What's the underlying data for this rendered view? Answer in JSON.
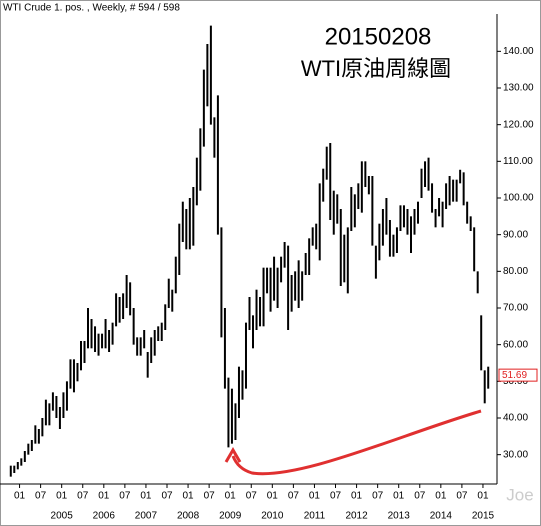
{
  "chart_data": {
    "type": "range-bar",
    "title": "WTI Crude 1. pos. , Weekly, # 594 / 598",
    "annotations": [
      "20150208",
      "WTI原油周線圖"
    ],
    "watermark": "Joe",
    "color": "#000000",
    "last_price": 51.69,
    "last_price_color": "#e02020",
    "x": [
      "2003-10",
      "2003-11",
      "2003-12",
      "2004-01",
      "2004-02",
      "2004-03",
      "2004-04",
      "2004-05",
      "2004-06",
      "2004-07",
      "2004-08",
      "2004-09",
      "2004-10",
      "2004-11",
      "2004-12",
      "2005-01",
      "2005-02",
      "2005-03",
      "2005-04",
      "2005-05",
      "2005-06",
      "2005-07",
      "2005-08",
      "2005-09",
      "2005-10",
      "2005-11",
      "2005-12",
      "2006-01",
      "2006-02",
      "2006-03",
      "2006-04",
      "2006-05",
      "2006-06",
      "2006-07",
      "2006-08",
      "2006-09",
      "2006-10",
      "2006-11",
      "2006-12",
      "2007-01",
      "2007-02",
      "2007-03",
      "2007-04",
      "2007-05",
      "2007-06",
      "2007-07",
      "2007-08",
      "2007-09",
      "2007-10",
      "2007-11",
      "2007-12",
      "2008-01",
      "2008-02",
      "2008-03",
      "2008-04",
      "2008-05",
      "2008-06",
      "2008-07",
      "2008-08",
      "2008-09",
      "2008-10",
      "2008-11",
      "2008-12",
      "2009-01",
      "2009-02",
      "2009-03",
      "2009-04",
      "2009-05",
      "2009-06",
      "2009-07",
      "2009-08",
      "2009-09",
      "2009-10",
      "2009-11",
      "2009-12",
      "2010-01",
      "2010-02",
      "2010-03",
      "2010-04",
      "2010-05",
      "2010-06",
      "2010-07",
      "2010-08",
      "2010-09",
      "2010-10",
      "2010-11",
      "2010-12",
      "2011-01",
      "2011-02",
      "2011-03",
      "2011-04",
      "2011-05",
      "2011-06",
      "2011-07",
      "2011-08",
      "2011-09",
      "2011-10",
      "2011-11",
      "2011-12",
      "2012-01",
      "2012-02",
      "2012-03",
      "2012-04",
      "2012-05",
      "2012-06",
      "2012-07",
      "2012-08",
      "2012-09",
      "2012-10",
      "2012-11",
      "2012-12",
      "2013-01",
      "2013-02",
      "2013-03",
      "2013-04",
      "2013-05",
      "2013-06",
      "2013-07",
      "2013-08",
      "2013-09",
      "2013-10",
      "2013-11",
      "2013-12",
      "2014-01",
      "2014-02",
      "2014-03",
      "2014-04",
      "2014-05",
      "2014-06",
      "2014-07",
      "2014-08",
      "2014-09",
      "2014-10",
      "2014-11",
      "2014-12",
      "2015-01",
      "2015-02"
    ],
    "low": [
      24,
      25,
      26,
      27,
      28,
      30,
      31,
      33,
      33,
      35,
      38,
      38,
      42,
      40,
      37,
      40,
      42,
      48,
      47,
      50,
      53,
      55,
      59,
      59,
      58,
      57,
      59,
      59,
      58,
      60,
      65,
      66,
      67,
      70,
      68,
      60,
      57,
      57,
      59,
      51,
      55,
      57,
      61,
      61,
      64,
      70,
      69,
      74,
      79,
      88,
      86,
      86,
      87,
      98,
      102,
      114,
      125,
      120,
      111,
      90,
      62,
      48,
      32,
      33,
      34,
      40,
      45,
      48,
      64,
      59,
      64,
      65,
      65,
      74,
      69,
      72,
      70,
      77,
      81,
      64,
      69,
      72,
      70,
      72,
      79,
      79,
      87,
      86,
      83,
      99,
      105,
      94,
      90,
      93,
      76,
      77,
      74,
      91,
      92,
      97,
      96,
      103,
      101,
      87,
      78,
      83,
      87,
      90,
      84,
      84,
      85,
      91,
      92,
      90,
      85,
      90,
      93,
      100,
      103,
      102,
      96,
      92,
      95,
      92,
      97,
      98,
      99,
      99,
      104,
      98,
      93,
      91,
      80,
      74,
      53,
      44,
      48
    ],
    "high": [
      27,
      27,
      28,
      29,
      31,
      33,
      34,
      38,
      37,
      40,
      45,
      44,
      47,
      46,
      43,
      47,
      50,
      56,
      56,
      55,
      61,
      61,
      70,
      67,
      65,
      63,
      63,
      67,
      64,
      66,
      74,
      73,
      74,
      79,
      77,
      70,
      62,
      62,
      64,
      58,
      62,
      64,
      65,
      66,
      71,
      78,
      75,
      84,
      93,
      99,
      97,
      100,
      103,
      111,
      119,
      135,
      142,
      147,
      122,
      128,
      92,
      70,
      51,
      48,
      44,
      54,
      53,
      66,
      73,
      68,
      75,
      73,
      81,
      81,
      81,
      84,
      81,
      84,
      88,
      87,
      79,
      80,
      83,
      80,
      85,
      89,
      92,
      93,
      104,
      108,
      114,
      115,
      102,
      101,
      97,
      90,
      92,
      103,
      101,
      104,
      110,
      110,
      106,
      106,
      87,
      93,
      97,
      100,
      94,
      90,
      92,
      98,
      98,
      97,
      95,
      97,
      99,
      108,
      110,
      111,
      104,
      97,
      100,
      99,
      104,
      106,
      105,
      105,
      107.7,
      107,
      99,
      95,
      92,
      80,
      68,
      53,
      54
    ],
    "xlim": [
      "2003-08",
      "2015-05"
    ],
    "ylim": [
      22,
      154
    ],
    "yticks": [
      {
        "value": 30,
        "label": "30.00"
      },
      {
        "value": 40,
        "label": "40.00"
      },
      {
        "value": 50,
        "label": "50.00"
      },
      {
        "value": 60,
        "label": "60.00"
      },
      {
        "value": 70,
        "label": "70.00"
      },
      {
        "value": 80,
        "label": "80.00"
      },
      {
        "value": 90,
        "label": "90.00"
      },
      {
        "value": 100,
        "label": "100.00"
      },
      {
        "value": 110,
        "label": "110.00"
      },
      {
        "value": 120,
        "label": "120.00"
      },
      {
        "value": 130,
        "label": "130.00"
      },
      {
        "value": 140,
        "label": "140.00"
      }
    ],
    "xticks": [
      {
        "value": "2004-01",
        "label": "01"
      },
      {
        "value": "2004-07",
        "label": "07"
      },
      {
        "value": "2005-01",
        "label": "01"
      },
      {
        "value": "2005-07",
        "label": "07"
      },
      {
        "value": "2006-01",
        "label": "01"
      },
      {
        "value": "2006-07",
        "label": "07"
      },
      {
        "value": "2007-01",
        "label": "01"
      },
      {
        "value": "2007-07",
        "label": "07"
      },
      {
        "value": "2008-01",
        "label": "01"
      },
      {
        "value": "2008-07",
        "label": "07"
      },
      {
        "value": "2009-01",
        "label": "01"
      },
      {
        "value": "2009-07",
        "label": "07"
      },
      {
        "value": "2010-01",
        "label": "01"
      },
      {
        "value": "2010-07",
        "label": "07"
      },
      {
        "value": "2011-01",
        "label": "01"
      },
      {
        "value": "2011-07",
        "label": "07"
      },
      {
        "value": "2012-01",
        "label": "01"
      },
      {
        "value": "2012-07",
        "label": "07"
      },
      {
        "value": "2013-01",
        "label": "01"
      },
      {
        "value": "2013-07",
        "label": "07"
      },
      {
        "value": "2014-01",
        "label": "01"
      },
      {
        "value": "2014-07",
        "label": "07"
      },
      {
        "value": "2015-01",
        "label": "01"
      }
    ],
    "year_labels": [
      {
        "value": "2005-01",
        "label": "2005"
      },
      {
        "value": "2006-01",
        "label": "2006"
      },
      {
        "value": "2007-01",
        "label": "2007"
      },
      {
        "value": "2008-01",
        "label": "2008"
      },
      {
        "value": "2009-01",
        "label": "2009"
      },
      {
        "value": "2010-01",
        "label": "2010"
      },
      {
        "value": "2011-01",
        "label": "2011"
      },
      {
        "value": "2012-01",
        "label": "2012"
      },
      {
        "value": "2013-01",
        "label": "2013"
      },
      {
        "value": "2014-01",
        "label": "2014"
      },
      {
        "value": "2015-01",
        "label": "2015"
      }
    ]
  }
}
